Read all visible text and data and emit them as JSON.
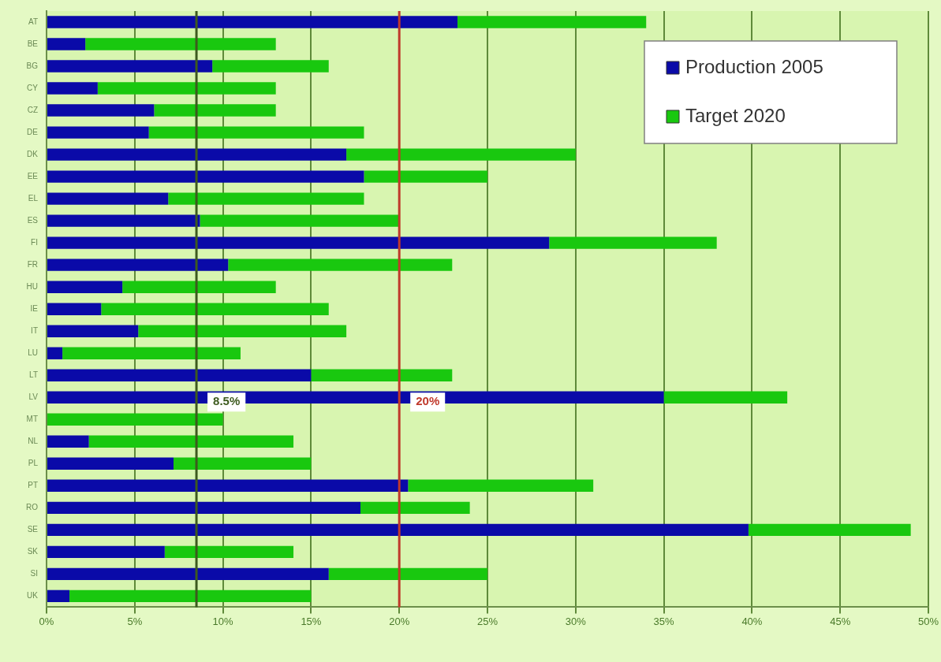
{
  "chart_data": {
    "type": "bar",
    "orientation": "horizontal",
    "stacked": true,
    "categories": [
      "AT",
      "BE",
      "BG",
      "CY",
      "CZ",
      "DE",
      "DK",
      "EE",
      "EL",
      "ES",
      "FI",
      "FR",
      "HU",
      "IE",
      "IT",
      "LU",
      "LT",
      "LV",
      "MT",
      "NL",
      "PL",
      "PT",
      "RO",
      "SE",
      "SK",
      "SI",
      "UK"
    ],
    "series": [
      {
        "name": "Production 2005",
        "color": "#0a0aa8",
        "values": [
          23.3,
          2.2,
          9.4,
          2.9,
          6.1,
          5.8,
          17.0,
          18.0,
          6.9,
          8.7,
          28.5,
          10.3,
          4.3,
          3.1,
          5.2,
          0.9,
          15.0,
          35,
          0,
          2.4,
          7.2,
          20.5,
          17.8,
          39.8,
          6.7,
          16.0,
          1.3
        ]
      },
      {
        "name": "Target 2020",
        "color": "#19c80f",
        "values": [
          10.7,
          10.8,
          6.6,
          10.1,
          6.9,
          12.2,
          13.0,
          7.0,
          11.1,
          11.3,
          9.5,
          12.7,
          8.7,
          12.9,
          11.8,
          10.1,
          8.0,
          7,
          10,
          11.6,
          7.8,
          10.5,
          6.2,
          9.2,
          7.3,
          9.0,
          13.7
        ]
      }
    ],
    "xlim": [
      0,
      50
    ],
    "xticks": [
      {
        "value": 0,
        "label": "0%"
      },
      {
        "value": 5,
        "label": "5%"
      },
      {
        "value": 10,
        "label": "10%"
      },
      {
        "value": 15,
        "label": "15%"
      },
      {
        "value": 20,
        "label": "20%"
      },
      {
        "value": 25,
        "label": "25%"
      },
      {
        "value": 30,
        "label": "30%"
      },
      {
        "value": 35,
        "label": "35%"
      },
      {
        "value": 40,
        "label": "40%"
      },
      {
        "value": 45,
        "label": "45%"
      },
      {
        "value": 50,
        "label": "50%"
      }
    ],
    "grid": "x",
    "legend": "top right",
    "ref_lines": [
      {
        "axis": "x",
        "value": 8.5,
        "label": "8.5%",
        "color": "#3d5a1e"
      },
      {
        "axis": "x",
        "value": 20,
        "label": "20%",
        "color": "#c0392b"
      }
    ]
  }
}
